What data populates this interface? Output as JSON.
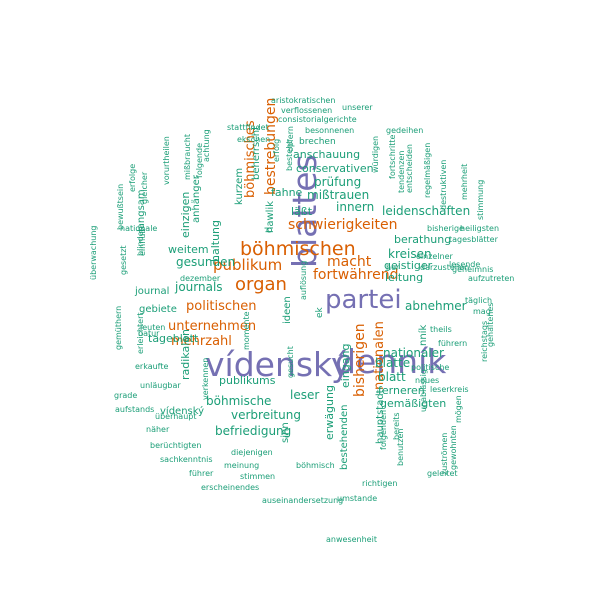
{
  "colors": {
    "purple": "#7570b3",
    "orange": "#d95f02",
    "teal": "#1b9e77"
  },
  "words": [
    {
      "text": "vídenský",
      "size": 33,
      "c": "purple"
    },
    {
      "text": "denník",
      "size": 33,
      "c": "purple"
    },
    {
      "text": "blattes",
      "size": 33,
      "c": "purple",
      "rot": true
    },
    {
      "text": "partei",
      "size": 26,
      "c": "purple"
    },
    {
      "text": "böhmischen",
      "size": 19,
      "c": "orange"
    },
    {
      "text": "organ",
      "size": 18,
      "c": "orange"
    },
    {
      "text": "publikum",
      "size": 15,
      "c": "orange"
    },
    {
      "text": "fortwährend",
      "size": 14,
      "c": "orange"
    },
    {
      "text": "schwierigkeiten",
      "size": 14,
      "c": "orange"
    },
    {
      "text": "macht",
      "size": 14,
      "c": "orange"
    },
    {
      "text": "politischen",
      "size": 13,
      "c": "orange"
    },
    {
      "text": "unternehmen",
      "size": 13,
      "c": "orange"
    },
    {
      "text": "mehrzahl",
      "size": 13,
      "c": "orange"
    },
    {
      "text": "bestrebungen",
      "size": 14,
      "c": "orange",
      "rot": true
    },
    {
      "text": "böhmisches",
      "size": 13,
      "c": "orange",
      "rot": true
    },
    {
      "text": "bisherigen",
      "size": 14,
      "c": "orange",
      "rot": true
    },
    {
      "text": "nationalen",
      "size": 13,
      "c": "orange",
      "rot": true
    },
    {
      "text": "anschauung",
      "size": 11,
      "c": "teal"
    },
    {
      "text": "conservativen",
      "size": 11,
      "c": "teal"
    },
    {
      "text": "prüfung",
      "size": 12,
      "c": "teal"
    },
    {
      "text": "mißtrauen",
      "size": 12,
      "c": "teal"
    },
    {
      "text": "innern",
      "size": 12,
      "c": "teal"
    },
    {
      "text": "leidenschaften",
      "size": 12,
      "c": "teal"
    },
    {
      "text": "fahne",
      "size": 11,
      "c": "teal"
    },
    {
      "text": "läßt",
      "size": 11,
      "c": "teal"
    },
    {
      "text": "berathung",
      "size": 11,
      "c": "teal"
    },
    {
      "text": "kreisen",
      "size": 12,
      "c": "teal"
    },
    {
      "text": "tagesblätter",
      "size": 8,
      "c": "teal"
    },
    {
      "text": "weitem",
      "size": 11,
      "c": "teal"
    },
    {
      "text": "gesunden",
      "size": 12,
      "c": "teal"
    },
    {
      "text": "journals",
      "size": 12,
      "c": "teal"
    },
    {
      "text": "geistiger",
      "size": 11,
      "c": "teal"
    },
    {
      "text": "leitung",
      "size": 11,
      "c": "teal"
    },
    {
      "text": "abnehmer",
      "size": 12,
      "c": "teal"
    },
    {
      "text": "journal",
      "size": 10,
      "c": "teal"
    },
    {
      "text": "gebiete",
      "size": 10,
      "c": "teal"
    },
    {
      "text": "tageblatt",
      "size": 11,
      "c": "teal"
    },
    {
      "text": "nationaler",
      "size": 12,
      "c": "teal"
    },
    {
      "text": "blatte",
      "size": 12,
      "c": "teal"
    },
    {
      "text": "blatt",
      "size": 12,
      "c": "teal"
    },
    {
      "text": "publikums",
      "size": 11,
      "c": "teal"
    },
    {
      "text": "böhmische",
      "size": 12,
      "c": "teal"
    },
    {
      "text": "vídenský",
      "size": 10,
      "c": "teal"
    },
    {
      "text": "verbreitung",
      "size": 12,
      "c": "teal"
    },
    {
      "text": "befriedigung",
      "size": 12,
      "c": "teal"
    },
    {
      "text": "leser",
      "size": 12,
      "c": "teal"
    },
    {
      "text": "ferneren",
      "size": 11,
      "c": "teal"
    },
    {
      "text": "gemäßigten",
      "size": 11,
      "c": "teal"
    },
    {
      "text": "eingang",
      "size": 11,
      "c": "teal",
      "rot": true
    },
    {
      "text": "erwägung",
      "size": 11,
      "c": "teal",
      "rot": true
    },
    {
      "text": "bestehenden",
      "size": 10,
      "c": "teal",
      "rot": true
    },
    {
      "text": "hauptstadt",
      "size": 10,
      "c": "teal",
      "rot": true
    },
    {
      "text": "radikalen",
      "size": 11,
      "c": "teal",
      "rot": true
    },
    {
      "text": "haltung",
      "size": 11,
      "c": "teal",
      "rot": true
    },
    {
      "text": "kurzem",
      "size": 10,
      "c": "teal",
      "rot": true
    },
    {
      "text": "beherrscht",
      "size": 10,
      "c": "teal",
      "rot": true
    },
    {
      "text": "einzigen",
      "size": 11,
      "c": "teal",
      "rot": true
    },
    {
      "text": "anhänger",
      "size": 10,
      "c": "teal",
      "rot": true
    },
    {
      "text": "langsam",
      "size": 10,
      "c": "teal",
      "rot": true
    },
    {
      "text": "nník",
      "size": 10,
      "c": "teal",
      "rot": true
    },
    {
      "text": "ideen",
      "size": 10,
      "c": "teal",
      "rot": true
    },
    {
      "text": "sinn",
      "size": 10,
      "c": "teal",
      "rot": true
    },
    {
      "text": "d",
      "size": 10,
      "c": "teal",
      "rot": true
    },
    {
      "text": "ek",
      "size": 9,
      "c": "teal",
      "rot": true
    },
    {
      "text": "hawlik",
      "size": 10,
      "c": "teal",
      "rot": true
    },
    {
      "text": "aristokratischen",
      "size": 8,
      "c": "teal"
    },
    {
      "text": "verflossenen",
      "size": 8,
      "c": "teal"
    },
    {
      "text": "unserer",
      "size": 8,
      "c": "teal"
    },
    {
      "text": "consistorialgerichte",
      "size": 8,
      "c": "teal"
    },
    {
      "text": "stattfindet",
      "size": 8,
      "c": "teal"
    },
    {
      "text": "besonnenen",
      "size": 8,
      "c": "teal"
    },
    {
      "text": "gedeihen",
      "size": 8,
      "c": "teal"
    },
    {
      "text": "ekschen",
      "size": 8,
      "c": "teal"
    },
    {
      "text": "brechen",
      "size": 9,
      "c": "teal"
    },
    {
      "text": "vorurtheilen",
      "size": 8,
      "c": "teal",
      "rot": true
    },
    {
      "text": "mißbraucht",
      "size": 8,
      "c": "teal",
      "rot": true
    },
    {
      "text": "achtung",
      "size": 8,
      "c": "teal",
      "rot": true
    },
    {
      "text": "folgende",
      "size": 8,
      "c": "teal",
      "rot": true
    },
    {
      "text": "erfolg",
      "size": 8,
      "c": "teal",
      "rot": true
    },
    {
      "text": "opfern",
      "size": 8,
      "c": "teal",
      "rot": true
    },
    {
      "text": "besteht",
      "size": 8,
      "c": "teal",
      "rot": true
    },
    {
      "text": "würdigen",
      "size": 8,
      "c": "teal",
      "rot": true
    },
    {
      "text": "fortschritte",
      "size": 8,
      "c": "teal",
      "rot": true
    },
    {
      "text": "tendenzen",
      "size": 8,
      "c": "teal",
      "rot": true
    },
    {
      "text": "entscheiden",
      "size": 8,
      "c": "teal",
      "rot": true
    },
    {
      "text": "regelmäßigen",
      "size": 8,
      "c": "teal",
      "rot": true
    },
    {
      "text": "destruktiven",
      "size": 8,
      "c": "teal",
      "rot": true
    },
    {
      "text": "mehrheit",
      "size": 8,
      "c": "teal",
      "rot": true
    },
    {
      "text": "bisherige",
      "size": 8,
      "c": "teal"
    },
    {
      "text": "heiligsten",
      "size": 8,
      "c": "teal"
    },
    {
      "text": "stimmung",
      "size": 8,
      "c": "teal",
      "rot": true
    },
    {
      "text": "einzelner",
      "size": 8,
      "c": "teal"
    },
    {
      "text": "darzustellen",
      "size": 8,
      "c": "teal"
    },
    {
      "text": "her",
      "size": 8,
      "c": "teal"
    },
    {
      "text": "lesende",
      "size": 8,
      "c": "teal"
    },
    {
      "text": "geheimnis",
      "size": 8,
      "c": "teal"
    },
    {
      "text": "aufzutreten",
      "size": 8,
      "c": "teal"
    },
    {
      "text": "täglich",
      "size": 8,
      "c": "teal"
    },
    {
      "text": "mag",
      "size": 8,
      "c": "teal"
    },
    {
      "text": "theils",
      "size": 8,
      "c": "teal"
    },
    {
      "text": "führern",
      "size": 8,
      "c": "teal"
    },
    {
      "text": "reichstags",
      "size": 8,
      "c": "teal",
      "rot": true
    },
    {
      "text": "politische",
      "size": 8,
      "c": "teal"
    },
    {
      "text": "neues",
      "size": 8,
      "c": "teal"
    },
    {
      "text": "leserkreis",
      "size": 8,
      "c": "teal"
    },
    {
      "text": "mögen",
      "size": 8,
      "c": "teal",
      "rot": true
    },
    {
      "text": "gehaltenes",
      "size": 8,
      "c": "teal",
      "rot": true
    },
    {
      "text": "bewußtsein",
      "size": 8,
      "c": "teal",
      "rot": true
    },
    {
      "text": "gleicher",
      "size": 8,
      "c": "teal",
      "rot": true
    },
    {
      "text": "erfolge",
      "size": 8,
      "c": "teal",
      "rot": true
    },
    {
      "text": "nationale",
      "size": 8,
      "c": "teal"
    },
    {
      "text": "einfluß",
      "size": 8,
      "c": "teal",
      "rot": true
    },
    {
      "text": "überwachung",
      "size": 8,
      "c": "teal",
      "rot": true
    },
    {
      "text": "gesetzt",
      "size": 8,
      "c": "teal",
      "rot": true
    },
    {
      "text": "blinden",
      "size": 8,
      "c": "teal",
      "rot": true
    },
    {
      "text": "dezember",
      "size": 8,
      "c": "teal"
    },
    {
      "text": "natur",
      "size": 8,
      "c": "teal"
    },
    {
      "text": "gemüthern",
      "size": 8,
      "c": "teal",
      "rot": true
    },
    {
      "text": "leuten",
      "size": 8,
      "c": "teal"
    },
    {
      "text": "erleichtert",
      "size": 8,
      "c": "teal",
      "rot": true
    },
    {
      "text": "erkaufte",
      "size": 8,
      "c": "teal"
    },
    {
      "text": "unläugbar",
      "size": 8,
      "c": "teal"
    },
    {
      "text": "grade",
      "size": 8,
      "c": "teal"
    },
    {
      "text": "aufstands",
      "size": 8,
      "c": "teal"
    },
    {
      "text": "überhaupt",
      "size": 8,
      "c": "teal"
    },
    {
      "text": "verkennen",
      "size": 8,
      "c": "teal",
      "rot": true
    },
    {
      "text": "momente",
      "size": 8,
      "c": "teal",
      "rot": true
    },
    {
      "text": "gesucht",
      "size": 8,
      "c": "teal",
      "rot": true
    },
    {
      "text": "näher",
      "size": 8,
      "c": "teal"
    },
    {
      "text": "berüchtigten",
      "size": 8,
      "c": "teal"
    },
    {
      "text": "sachkenntnis",
      "size": 8,
      "c": "teal"
    },
    {
      "text": "diejenigen",
      "size": 8,
      "c": "teal"
    },
    {
      "text": "meinung",
      "size": 8,
      "c": "teal"
    },
    {
      "text": "böhmisch",
      "size": 8,
      "c": "teal"
    },
    {
      "text": "führer",
      "size": 8,
      "c": "teal"
    },
    {
      "text": "stimmen",
      "size": 8,
      "c": "teal"
    },
    {
      "text": "erscheinendes",
      "size": 8,
      "c": "teal"
    },
    {
      "text": "auseinandersetzung",
      "size": 8,
      "c": "teal"
    },
    {
      "text": "umstande",
      "size": 8,
      "c": "teal"
    },
    {
      "text": "richtigen",
      "size": 8,
      "c": "teal"
    },
    {
      "text": "anwesenheit",
      "size": 8,
      "c": "teal"
    },
    {
      "text": "folgenden",
      "size": 8,
      "c": "teal",
      "rot": true
    },
    {
      "text": "benutzen",
      "size": 8,
      "c": "teal",
      "rot": true
    },
    {
      "text": "bereits",
      "size": 8,
      "c": "teal",
      "rot": true
    },
    {
      "text": "unablässig",
      "size": 8,
      "c": "teal",
      "rot": true
    },
    {
      "text": "geleitet",
      "size": 8,
      "c": "teal"
    },
    {
      "text": "zuströmen",
      "size": 8,
      "c": "teal",
      "rot": true
    },
    {
      "text": "gewohnten",
      "size": 8,
      "c": "teal",
      "rot": true
    },
    {
      "text": "auflösung",
      "size": 8,
      "c": "teal",
      "rot": true
    }
  ]
}
